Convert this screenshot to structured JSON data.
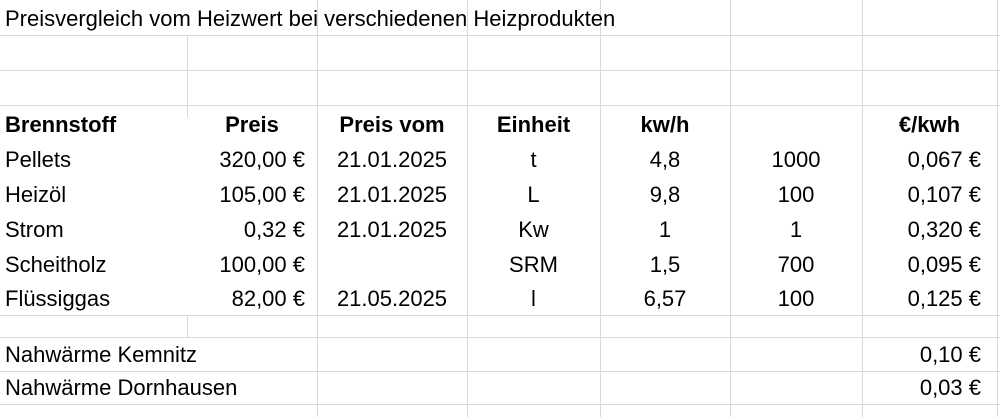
{
  "title": "Preisvergleich vom Heizwert bei verschiedenen Heizprodukten",
  "headers": [
    "Brennstoff",
    "Preis",
    "Preis vom",
    "Einheit",
    "kw/h",
    "",
    "€/kwh"
  ],
  "rows": [
    [
      "Pellets",
      "320,00 €",
      "21.01.2025",
      "t",
      "4,8",
      "1000",
      "0,067 €"
    ],
    [
      "Heizöl",
      "105,00 €",
      "21.01.2025",
      "L",
      "9,8",
      "100",
      "0,107 €"
    ],
    [
      "Strom",
      "0,32 €",
      "21.01.2025",
      "Kw",
      "1",
      "1",
      "0,320 €"
    ],
    [
      "Scheitholz",
      "100,00 €",
      "",
      "SRM",
      "1,5",
      "700",
      "0,095 €"
    ],
    [
      "Flüssiggas",
      "82,00 €",
      "21.05.2025",
      "l",
      "6,57",
      "100",
      "0,125 €"
    ]
  ],
  "extra_rows": [
    [
      "Nahwärme Kemnitz",
      "0,10 €"
    ],
    [
      "Nahwärme Dornhausen",
      "0,03 €"
    ]
  ],
  "colors": {
    "gridline": "#d9d9d9",
    "text": "#000000",
    "background": "#ffffff"
  }
}
